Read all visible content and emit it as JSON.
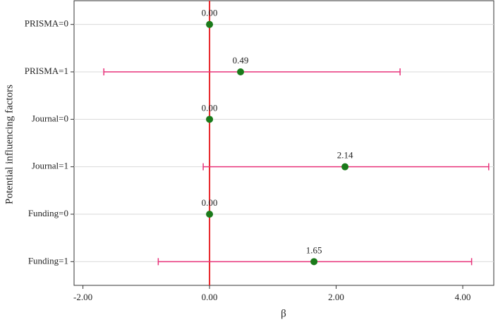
{
  "chart_data": {
    "type": "forest",
    "ylabel": "Potential influencing factors",
    "xlabel": "β",
    "categories": [
      "PRISMA=0",
      "PRISMA=1",
      "Journal=0",
      "Journal=1",
      "Funding=0",
      "Funding=1"
    ],
    "values": [
      0,
      0.49,
      0,
      2.14,
      0,
      1.65
    ],
    "value_labels": [
      "0.00",
      "0.49",
      "0.00",
      "2.14",
      "0.00",
      "1.65"
    ],
    "ci_low": [
      null,
      -1.67,
      null,
      -0.1,
      null,
      -0.81
    ],
    "ci_high": [
      null,
      3.01,
      null,
      4.41,
      null,
      4.14
    ],
    "point_color": "#1a7a1a",
    "bar_color": "#e8327a",
    "reference_line": 0,
    "reference_color": "#e8262a",
    "xlim": [
      -2.14,
      4.49
    ],
    "xticks": [
      {
        "value": -2,
        "label": "-2.00"
      },
      {
        "value": 0,
        "label": "0.00"
      },
      {
        "value": 2,
        "label": "2.00"
      },
      {
        "value": 4,
        "label": "4.00"
      }
    ],
    "grid": true
  }
}
